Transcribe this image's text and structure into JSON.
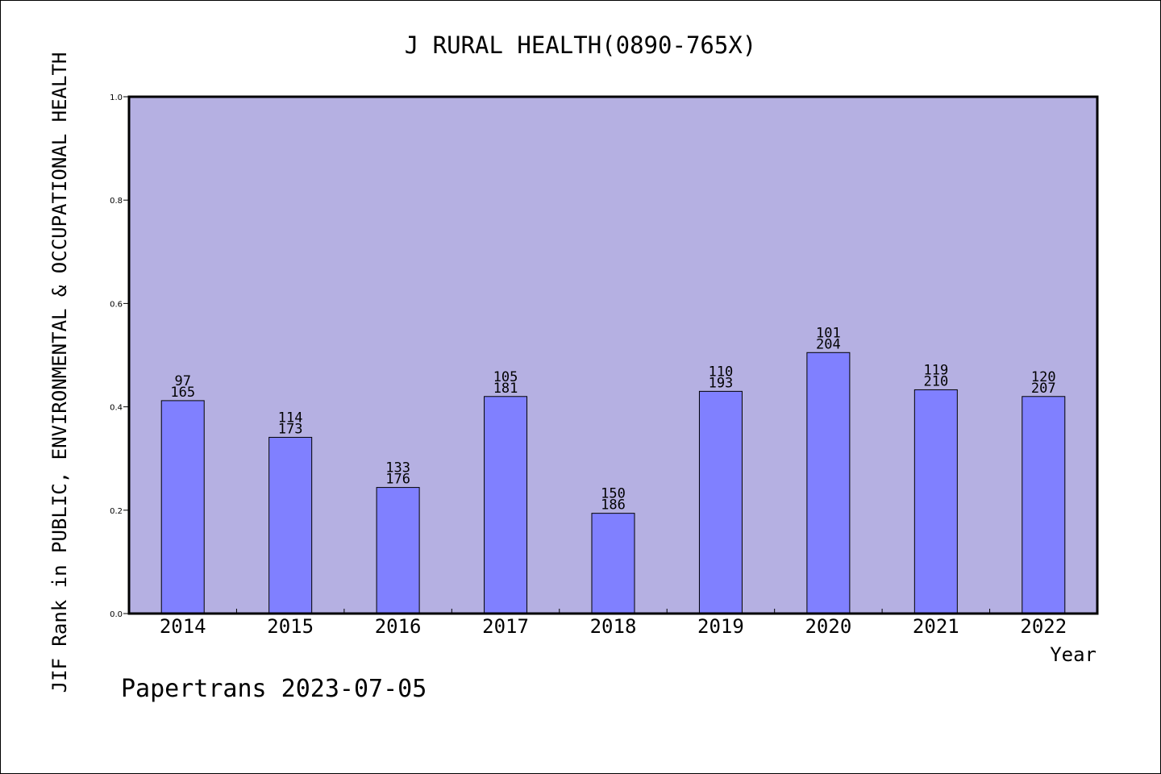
{
  "chart_data": {
    "type": "bar",
    "title": "J RURAL HEALTH(0890-765X)",
    "xlabel": "Year",
    "ylabel": "JIF Rank in PUBLIC, ENVIRONMENTAL & OCCUPATIONAL HEALTH",
    "categories": [
      "2014",
      "2015",
      "2016",
      "2017",
      "2018",
      "2019",
      "2020",
      "2021",
      "2022"
    ],
    "values": [
      0.412,
      0.341,
      0.244,
      0.42,
      0.194,
      0.43,
      0.505,
      0.433,
      0.42
    ],
    "rank_labels": [
      "97",
      "114",
      "133",
      "105",
      "150",
      "110",
      "101",
      "119",
      "120"
    ],
    "total_labels": [
      "165",
      "173",
      "176",
      "181",
      "186",
      "193",
      "204",
      "210",
      "207"
    ],
    "ylim": [
      0,
      1.0
    ],
    "yticks": [
      "0.0",
      "0.2",
      "0.4",
      "0.6",
      "0.8",
      "1.0"
    ],
    "grid": false,
    "colors": {
      "plot_bg": "#b5b0e2",
      "bar": "#8080ff",
      "axis": "#000000"
    }
  },
  "footer": {
    "credit": "Papertrans 2023-07-05"
  }
}
